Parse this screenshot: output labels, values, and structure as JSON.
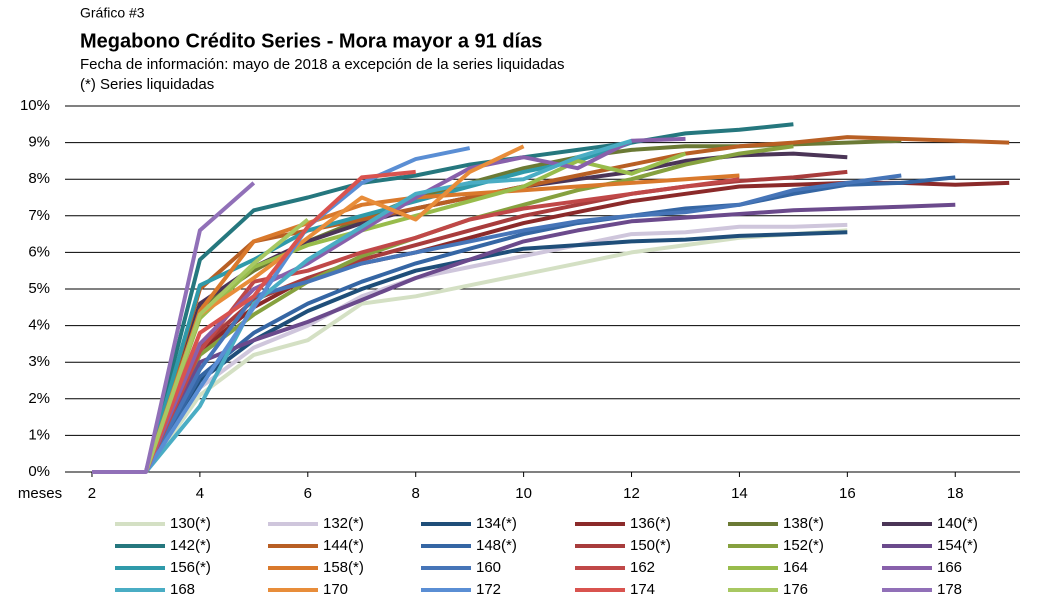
{
  "chart_data": {
    "type": "line",
    "label": "Gráfico #3",
    "title": "Megabono Crédito Series - Mora mayor a 91 días",
    "subtitle": "Fecha de información: mayo de 2018 a excepción de la series liquidadas",
    "note": "(*) Series liquidadas",
    "x_label": "meses",
    "x": [
      2,
      3,
      4,
      5,
      6,
      7,
      8,
      9,
      10,
      11,
      12,
      13,
      14,
      15,
      16,
      17,
      18,
      19
    ],
    "xlim": [
      1.5,
      19.2
    ],
    "xticks": [
      2,
      4,
      6,
      8,
      10,
      12,
      14,
      16,
      18
    ],
    "ylim": [
      0,
      10
    ],
    "yticks": [
      {
        "value": 0,
        "label": "0%"
      },
      {
        "value": 1,
        "label": "1%"
      },
      {
        "value": 2,
        "label": "2%"
      },
      {
        "value": 3,
        "label": "3%"
      },
      {
        "value": 4,
        "label": "4%"
      },
      {
        "value": 5,
        "label": "5%"
      },
      {
        "value": 6,
        "label": "6%"
      },
      {
        "value": 7,
        "label": "7%"
      },
      {
        "value": 8,
        "label": "8%"
      },
      {
        "value": 9,
        "label": "9%"
      },
      {
        "value": 10,
        "label": "10%"
      }
    ],
    "grid": true,
    "legend": "bottom",
    "series": [
      {
        "name": "130(*)",
        "color": "#d4e0c4",
        "values": [
          null,
          0,
          2.1,
          3.2,
          3.6,
          4.6,
          4.8,
          5.1,
          5.4,
          5.7,
          6.0,
          6.2,
          6.4,
          6.5,
          6.6,
          null,
          null,
          null
        ]
      },
      {
        "name": "132(*)",
        "color": "#cfc6dc",
        "values": [
          null,
          0,
          2.3,
          3.4,
          4.0,
          4.8,
          5.3,
          5.6,
          5.9,
          6.2,
          6.5,
          6.55,
          6.7,
          6.7,
          6.75,
          null,
          null,
          null
        ]
      },
      {
        "name": "134(*)",
        "color": "#1f4e79",
        "values": [
          null,
          0,
          2.5,
          3.6,
          4.4,
          5.0,
          5.5,
          5.8,
          6.1,
          6.2,
          6.3,
          6.35,
          6.45,
          6.5,
          6.55,
          null,
          null,
          null
        ]
      },
      {
        "name": "136(*)",
        "color": "#8b2a2a",
        "values": [
          null,
          0,
          3.3,
          4.5,
          5.3,
          5.7,
          6.0,
          6.4,
          6.8,
          7.1,
          7.4,
          7.6,
          7.8,
          7.85,
          7.9,
          7.9,
          7.85,
          7.9
        ]
      },
      {
        "name": "138(*)",
        "color": "#6b7a35",
        "values": [
          null,
          0,
          4.5,
          5.5,
          6.3,
          6.9,
          7.5,
          7.9,
          8.3,
          8.6,
          8.8,
          8.9,
          8.9,
          8.95,
          9.0,
          9.05,
          null,
          null
        ]
      },
      {
        "name": "140(*)",
        "color": "#4b3557",
        "values": [
          null,
          0,
          4.6,
          5.6,
          6.3,
          6.8,
          7.2,
          7.5,
          7.8,
          8.0,
          8.2,
          8.5,
          8.65,
          8.7,
          8.6,
          null,
          null,
          null
        ]
      },
      {
        "name": "142(*)",
        "color": "#25777e",
        "values": [
          null,
          0,
          5.8,
          7.15,
          7.5,
          7.9,
          8.1,
          8.4,
          8.6,
          8.8,
          9.0,
          9.25,
          9.35,
          9.5,
          null,
          null,
          null,
          null
        ]
      },
      {
        "name": "144(*)",
        "color": "#b85f24",
        "values": [
          null,
          0,
          5.0,
          6.3,
          6.6,
          6.9,
          7.2,
          7.5,
          7.8,
          8.1,
          8.4,
          8.7,
          8.9,
          9.0,
          9.15,
          9.1,
          9.05,
          9.0
        ]
      },
      {
        "name": "148(*)",
        "color": "#3566a4",
        "values": [
          null,
          0,
          2.6,
          3.8,
          4.6,
          5.2,
          5.7,
          6.1,
          6.5,
          6.8,
          7.0,
          7.2,
          7.3,
          7.6,
          7.85,
          7.9,
          8.05,
          null
        ]
      },
      {
        "name": "150(*)",
        "color": "#a83c3c",
        "values": [
          null,
          0,
          3.4,
          4.7,
          5.3,
          5.8,
          6.2,
          6.6,
          7.0,
          7.3,
          7.6,
          7.8,
          7.95,
          8.05,
          8.2,
          null,
          null,
          null
        ]
      },
      {
        "name": "152(*)",
        "color": "#86a13f",
        "values": [
          null,
          0,
          3.2,
          4.3,
          5.2,
          5.9,
          6.4,
          6.9,
          7.3,
          7.7,
          8.0,
          8.4,
          8.7,
          8.9,
          null,
          null,
          null,
          null
        ]
      },
      {
        "name": "154(*)",
        "color": "#6b4a8c",
        "values": [
          null,
          0,
          3.0,
          3.6,
          4.1,
          4.7,
          5.3,
          5.8,
          6.3,
          6.6,
          6.85,
          6.95,
          7.05,
          7.15,
          7.2,
          7.25,
          7.3,
          null
        ]
      },
      {
        "name": "156(*)",
        "color": "#2f9aaa",
        "values": [
          null,
          0,
          5.1,
          5.8,
          6.6,
          7.0,
          7.4,
          7.8,
          8.2,
          8.5,
          9.0,
          null,
          null,
          null,
          null,
          null,
          null,
          null
        ]
      },
      {
        "name": "158(*)",
        "color": "#d9792c",
        "values": [
          null,
          0,
          4.4,
          6.3,
          6.8,
          7.3,
          7.5,
          7.6,
          7.7,
          7.8,
          7.9,
          8.0,
          8.1,
          null,
          null,
          null,
          null,
          null
        ]
      },
      {
        "name": "160",
        "color": "#4675b8",
        "values": [
          null,
          0,
          2.8,
          4.8,
          5.2,
          5.7,
          6.0,
          6.3,
          6.6,
          6.85,
          7.0,
          7.1,
          7.3,
          7.7,
          7.9,
          8.1,
          null,
          null
        ]
      },
      {
        "name": "162",
        "color": "#c04848",
        "values": [
          null,
          0,
          3.3,
          5.2,
          5.5,
          6.0,
          6.4,
          6.9,
          7.2,
          7.4,
          7.6,
          7.8,
          8.0,
          null,
          null,
          null,
          null,
          null
        ]
      },
      {
        "name": "164",
        "color": "#98bc4c",
        "values": [
          null,
          0,
          4.2,
          5.6,
          6.2,
          6.6,
          7.0,
          7.4,
          7.8,
          8.5,
          8.15,
          8.7,
          null,
          null,
          null,
          null,
          null,
          null
        ]
      },
      {
        "name": "166",
        "color": "#8860ab",
        "values": [
          null,
          0,
          3.5,
          5.0,
          5.7,
          6.6,
          7.5,
          8.3,
          8.6,
          8.3,
          9.05,
          9.1,
          null,
          null,
          null,
          null,
          null,
          null
        ]
      },
      {
        "name": "168",
        "color": "#4aadc4",
        "values": [
          null,
          0,
          1.8,
          4.6,
          5.8,
          6.7,
          7.6,
          7.9,
          8.0,
          8.6,
          9.05,
          null,
          null,
          null,
          null,
          null,
          null,
          null
        ]
      },
      {
        "name": "170",
        "color": "#e88d3a",
        "values": [
          null,
          0,
          4.3,
          5.3,
          6.4,
          7.5,
          6.9,
          8.2,
          8.9,
          null,
          null,
          null,
          null,
          null,
          null,
          null,
          null,
          null
        ]
      },
      {
        "name": "172",
        "color": "#5a8ed4",
        "values": [
          null,
          0,
          2.3,
          4.5,
          6.7,
          7.9,
          8.55,
          8.85,
          null,
          null,
          null,
          null,
          null,
          null,
          null,
          null,
          null,
          null
        ]
      },
      {
        "name": "174",
        "color": "#d9534f",
        "values": [
          null,
          0,
          3.8,
          4.8,
          6.7,
          8.05,
          8.2,
          null,
          null,
          null,
          null,
          null,
          null,
          null,
          null,
          null,
          null,
          null
        ]
      },
      {
        "name": "176",
        "color": "#a8c862",
        "values": [
          null,
          0,
          4.3,
          5.7,
          6.9,
          null,
          null,
          null,
          null,
          null,
          null,
          null,
          null,
          null,
          null,
          null,
          null,
          null
        ]
      },
      {
        "name": "178",
        "color": "#9170b8",
        "values": [
          0,
          0,
          6.6,
          7.9,
          null,
          null,
          null,
          null,
          null,
          null,
          null,
          null,
          null,
          null,
          null,
          null,
          null,
          null
        ]
      }
    ]
  }
}
